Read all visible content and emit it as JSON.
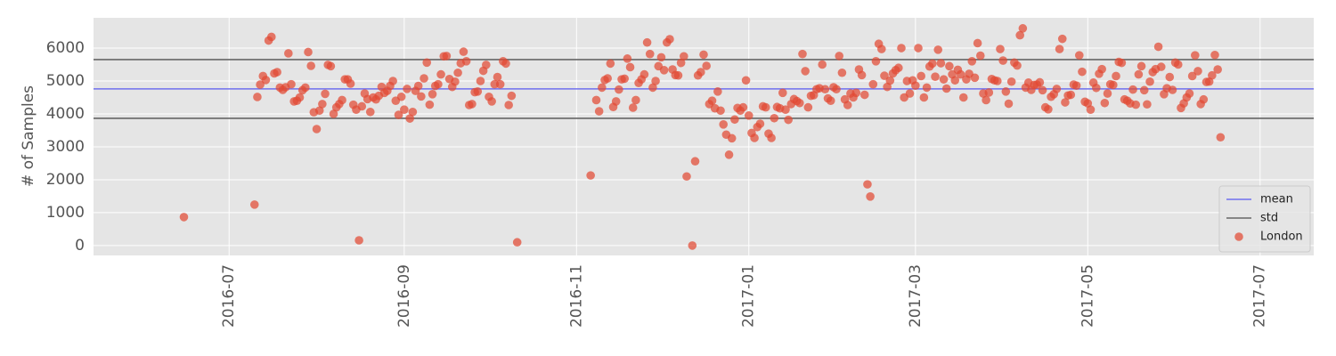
{
  "chart_data": {
    "type": "scatter",
    "ylabel": "# of Samples",
    "xlim": [
      "2016-05-14",
      "2017-07-20"
    ],
    "xticks": [
      "2016-07",
      "2016-09",
      "2016-11",
      "2017-01",
      "2017-03",
      "2017-05",
      "2017-07"
    ],
    "ylim": [
      -300,
      6920
    ],
    "yticks": [
      0,
      1000,
      2000,
      3000,
      4000,
      5000,
      6000
    ],
    "grid": true,
    "legend": "lower right",
    "lines": [
      {
        "name": "mean",
        "color": "#7070ee",
        "values": [
          4760
        ]
      },
      {
        "name": "std",
        "color": "#666666",
        "values": [
          3865,
          5650
        ]
      }
    ],
    "series": [
      {
        "name": "London",
        "color": "#e24a33",
        "x": [
          "2016-06-15",
          "2016-07-10",
          "2016-07-11",
          "2016-07-12",
          "2016-07-13",
          "2016-07-14",
          "2016-07-15",
          "2016-07-16",
          "2016-07-17",
          "2016-07-18",
          "2016-07-19",
          "2016-07-20",
          "2016-07-21",
          "2016-07-22",
          "2016-07-23",
          "2016-07-24",
          "2016-07-25",
          "2016-07-26",
          "2016-07-27",
          "2016-07-28",
          "2016-07-29",
          "2016-07-30",
          "2016-07-31",
          "2016-08-01",
          "2016-08-02",
          "2016-08-03",
          "2016-08-04",
          "2016-08-05",
          "2016-08-06",
          "2016-08-07",
          "2016-08-08",
          "2016-08-09",
          "2016-08-10",
          "2016-08-11",
          "2016-08-12",
          "2016-08-13",
          "2016-08-14",
          "2016-08-15",
          "2016-08-16",
          "2016-08-17",
          "2016-08-18",
          "2016-08-19",
          "2016-08-20",
          "2016-08-21",
          "2016-08-22",
          "2016-08-23",
          "2016-08-24",
          "2016-08-25",
          "2016-08-26",
          "2016-08-27",
          "2016-08-28",
          "2016-08-29",
          "2016-08-30",
          "2016-08-31",
          "2016-09-01",
          "2016-09-02",
          "2016-09-03",
          "2016-09-04",
          "2016-09-05",
          "2016-09-06",
          "2016-09-07",
          "2016-09-08",
          "2016-09-09",
          "2016-09-10",
          "2016-09-11",
          "2016-09-12",
          "2016-09-13",
          "2016-09-14",
          "2016-09-15",
          "2016-09-16",
          "2016-09-17",
          "2016-09-18",
          "2016-09-19",
          "2016-09-20",
          "2016-09-21",
          "2016-09-22",
          "2016-09-23",
          "2016-09-24",
          "2016-09-25",
          "2016-09-26",
          "2016-09-27",
          "2016-09-28",
          "2016-09-29",
          "2016-09-30",
          "2016-10-01",
          "2016-10-02",
          "2016-10-03",
          "2016-10-04",
          "2016-10-05",
          "2016-10-06",
          "2016-10-07",
          "2016-10-08",
          "2016-10-09",
          "2016-10-11",
          "2016-11-06",
          "2016-11-08",
          "2016-11-09",
          "2016-11-10",
          "2016-11-11",
          "2016-11-12",
          "2016-11-13",
          "2016-11-14",
          "2016-11-15",
          "2016-11-16",
          "2016-11-17",
          "2016-11-18",
          "2016-11-19",
          "2016-11-20",
          "2016-11-21",
          "2016-11-22",
          "2016-11-23",
          "2016-11-24",
          "2016-11-25",
          "2016-11-26",
          "2016-11-27",
          "2016-11-28",
          "2016-11-29",
          "2016-11-30",
          "2016-12-01",
          "2016-12-02",
          "2016-12-03",
          "2016-12-04",
          "2016-12-05",
          "2016-12-06",
          "2016-12-07",
          "2016-12-08",
          "2016-12-09",
          "2016-12-10",
          "2016-12-12",
          "2016-12-13",
          "2016-12-14",
          "2016-12-15",
          "2016-12-16",
          "2016-12-17",
          "2016-12-18",
          "2016-12-19",
          "2016-12-20",
          "2016-12-21",
          "2016-12-22",
          "2016-12-23",
          "2016-12-24",
          "2016-12-25",
          "2016-12-26",
          "2016-12-27",
          "2016-12-28",
          "2016-12-29",
          "2016-12-30",
          "2016-12-31",
          "2017-01-01",
          "2017-01-02",
          "2017-01-03",
          "2017-01-04",
          "2017-01-05",
          "2017-01-06",
          "2017-01-07",
          "2017-01-08",
          "2017-01-09",
          "2017-01-10",
          "2017-01-11",
          "2017-01-12",
          "2017-01-13",
          "2017-01-14",
          "2017-01-15",
          "2017-01-16",
          "2017-01-17",
          "2017-01-18",
          "2017-01-19",
          "2017-01-20",
          "2017-01-21",
          "2017-01-22",
          "2017-01-23",
          "2017-01-24",
          "2017-01-25",
          "2017-01-26",
          "2017-01-27",
          "2017-01-28",
          "2017-01-29",
          "2017-01-30",
          "2017-01-31",
          "2017-02-01",
          "2017-02-02",
          "2017-02-03",
          "2017-02-04",
          "2017-02-05",
          "2017-02-06",
          "2017-02-07",
          "2017-02-08",
          "2017-02-09",
          "2017-02-10",
          "2017-02-11",
          "2017-02-12",
          "2017-02-13",
          "2017-02-14",
          "2017-02-15",
          "2017-02-16",
          "2017-02-17",
          "2017-02-18",
          "2017-02-19",
          "2017-02-20",
          "2017-02-21",
          "2017-02-22",
          "2017-02-23",
          "2017-02-24",
          "2017-02-25",
          "2017-02-26",
          "2017-02-27",
          "2017-02-28",
          "2017-03-01",
          "2017-03-02",
          "2017-03-03",
          "2017-03-04",
          "2017-03-05",
          "2017-03-06",
          "2017-03-07",
          "2017-03-08",
          "2017-03-09",
          "2017-03-10",
          "2017-03-11",
          "2017-03-12",
          "2017-03-13",
          "2017-03-14",
          "2017-03-15",
          "2017-03-16",
          "2017-03-17",
          "2017-03-18",
          "2017-03-19",
          "2017-03-20",
          "2017-03-21",
          "2017-03-22",
          "2017-03-23",
          "2017-03-24",
          "2017-03-25",
          "2017-03-26",
          "2017-03-27",
          "2017-03-28",
          "2017-03-29",
          "2017-03-30",
          "2017-03-31",
          "2017-04-01",
          "2017-04-02",
          "2017-04-03",
          "2017-04-04",
          "2017-04-05",
          "2017-04-06",
          "2017-04-07",
          "2017-04-08",
          "2017-04-09",
          "2017-04-10",
          "2017-04-11",
          "2017-04-12",
          "2017-04-13",
          "2017-04-14",
          "2017-04-15",
          "2017-04-16",
          "2017-04-17",
          "2017-04-18",
          "2017-04-19",
          "2017-04-20",
          "2017-04-21",
          "2017-04-22",
          "2017-04-23",
          "2017-04-24",
          "2017-04-25",
          "2017-04-26",
          "2017-04-27",
          "2017-04-28",
          "2017-04-29",
          "2017-04-30",
          "2017-05-01",
          "2017-05-02",
          "2017-05-03",
          "2017-05-04",
          "2017-05-05",
          "2017-05-06",
          "2017-05-07",
          "2017-05-08",
          "2017-05-09",
          "2017-05-10",
          "2017-05-11",
          "2017-05-12",
          "2017-05-13",
          "2017-05-14",
          "2017-05-15",
          "2017-05-16",
          "2017-05-17",
          "2017-05-18",
          "2017-05-19",
          "2017-05-20",
          "2017-05-21",
          "2017-05-22",
          "2017-05-23",
          "2017-05-24",
          "2017-05-25",
          "2017-05-26",
          "2017-05-27",
          "2017-05-28",
          "2017-05-29",
          "2017-05-30",
          "2017-05-31",
          "2017-06-01",
          "2017-06-02",
          "2017-06-03",
          "2017-06-04",
          "2017-06-05",
          "2017-06-06",
          "2017-06-07",
          "2017-06-08",
          "2017-06-09",
          "2017-06-10",
          "2017-06-11",
          "2017-06-12",
          "2017-06-13",
          "2017-06-14",
          "2017-06-15",
          "2017-06-16",
          "2017-06-17"
        ],
        "values": [
          865,
          1245,
          4515,
          4890,
          5150,
          5030,
          6230,
          6340,
          5230,
          5270,
          4800,
          4730,
          4810,
          5840,
          4900,
          4380,
          4400,
          4500,
          4720,
          4800,
          5880,
          5460,
          4050,
          3540,
          4100,
          4300,
          4610,
          5490,
          5450,
          4000,
          4200,
          4300,
          4420,
          5050,
          5050,
          4920,
          4280,
          4130,
          160,
          4230,
          4620,
          4450,
          4060,
          4500,
          4440,
          4550,
          4820,
          4640,
          4700,
          4850,
          5000,
          4400,
          3970,
          4520,
          4130,
          4760,
          3860,
          4060,
          4700,
          4850,
          4530,
          5080,
          5560,
          4280,
          4600,
          4850,
          4900,
          5200,
          5750,
          5760,
          5060,
          4820,
          4980,
          5250,
          5540,
          5890,
          5600,
          4270,
          4300,
          4660,
          4680,
          5000,
          5310,
          5490,
          4520,
          4380,
          4900,
          5120,
          4900,
          5600,
          5530,
          4270,
          4550,
          100,
          2130,
          4420,
          4080,
          4800,
          5030,
          5080,
          5530,
          4210,
          4380,
          4740,
          5050,
          5070,
          5680,
          5420,
          4190,
          4420,
          4940,
          5050,
          5200,
          6170,
          5820,
          4800,
          5000,
          5450,
          5720,
          5330,
          6170,
          6270,
          5350,
          5180,
          5170,
          5550,
          5750,
          2100,
          0,
          2560,
          5170,
          5270,
          5800,
          5460,
          4300,
          4400,
          4170,
          4680,
          4100,
          3680,
          3370,
          2760,
          3260,
          3830,
          4180,
          4100,
          4200,
          5020,
          3950,
          3420,
          3270,
          3600,
          3700,
          4230,
          4200,
          3400,
          3270,
          3870,
          4210,
          4170,
          4640,
          4130,
          3820,
          4300,
          4450,
          4390,
          4330,
          5820,
          5300,
          4200,
          4550,
          4570,
          4750,
          4780,
          5500,
          4750,
          4470,
          4400,
          4810,
          4750,
          5760,
          5250,
          4440,
          4270,
          4620,
          4500,
          4640,
          5350,
          5180,
          4580,
          1860,
          1490,
          4900,
          5600,
          6130,
          5970,
          5160,
          4820,
          5010,
          5230,
          5330,
          5400,
          6000,
          4500,
          5000,
          4620,
          5020,
          4860,
          6000,
          5150,
          4500,
          4800,
          5440,
          5530,
          5130,
          5950,
          5540,
          5050,
          4770,
          5450,
          5200,
          5020,
          5340,
          5200,
          4500,
          5050,
          5220,
          5600,
          5100,
          6150,
          5770,
          4620,
          4420,
          4650,
          5060,
          5020,
          5000,
          5970,
          5620,
          4680,
          4310,
          4980,
          5560,
          5470,
          6390,
          6600,
          4800,
          4950,
          4730,
          4880,
          4890,
          4960,
          4720,
          4200,
          4140,
          4520,
          4600,
          4760,
          5970,
          6280,
          4350,
          4560,
          4580,
          4890,
          4860,
          5780,
          5280,
          4370,
          4320,
          4130,
          4950,
          4790,
          5220,
          5360,
          4330,
          4620,
          4900,
          4880,
          5150,
          5580,
          5550,
          4440,
          4400,
          4320,
          4740,
          4280,
          5200,
          5450,
          4720,
          4290,
          4980,
          5270,
          5360,
          6040,
          5430,
          4600,
          4780,
          5120,
          4730,
          5560,
          5500,
          4180,
          4320,
          4500,
          4620,
          5150,
          5780,
          5300,
          4300,
          4440,
          4970,
          4980,
          5170,
          5790,
          5350,
          3290
        ]
      }
    ]
  }
}
